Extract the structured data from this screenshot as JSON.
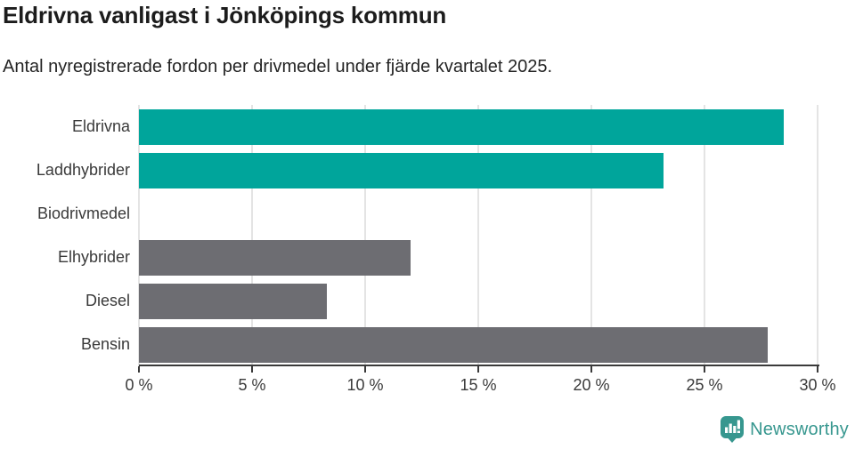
{
  "header": {
    "title": "Eldrivna vanligast i Jönköpings kommun",
    "subtitle": "Antal nyregistrerade fordon per drivmedel under fjärde kvartalet 2025."
  },
  "chart_data": {
    "type": "bar",
    "orientation": "horizontal",
    "title": "Eldrivna vanligast i Jönköpings kommun",
    "subtitle": "Antal nyregistrerade fordon per drivmedel under fjärde kvartalet 2025.",
    "categories": [
      "Eldrivna",
      "Laddhybrider",
      "Biodrivmedel",
      "Elhybrider",
      "Diesel",
      "Bensin"
    ],
    "values": [
      28.5,
      23.2,
      0,
      12.0,
      8.3,
      27.8
    ],
    "unit": "%",
    "xlim": [
      0,
      30
    ],
    "x_ticks": [
      0,
      5,
      10,
      15,
      20,
      25,
      30
    ],
    "x_tick_labels": [
      "0 %",
      "5 %",
      "10 %",
      "15 %",
      "20 %",
      "25 %",
      "30 %"
    ],
    "bar_colors": [
      "#00a59b",
      "#00a59b",
      "#6d6d72",
      "#6d6d72",
      "#6d6d72",
      "#6d6d72"
    ],
    "grid": true,
    "legend": false
  },
  "footer": {
    "brand": "Newsworthy",
    "logo_icon": "newsworthy-speech-bubble-bar-chart-icon"
  },
  "colors": {
    "accent_teal": "#00a59b",
    "neutral_gray": "#6d6d72",
    "gridline": "#e4e4e4",
    "axis": "#3a3a3a",
    "tick_text": "#3a3a3a",
    "title_text": "#1c1c1c",
    "subtitle_text": "#242424",
    "brand_teal": "#37978f"
  }
}
